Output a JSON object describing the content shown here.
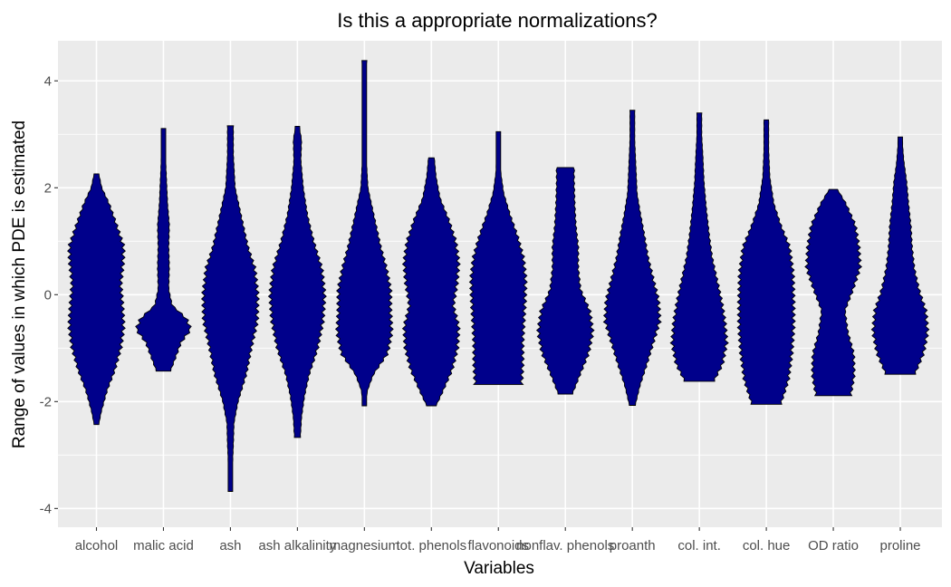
{
  "chart_data": {
    "type": "violin",
    "title": "Is this a appropriate normalizations?",
    "xlabel": "Variables",
    "ylabel": "Range of values in which PDE is estimated",
    "ylim": [
      -4.35,
      4.75
    ],
    "y_ticks": [
      -4,
      -2,
      0,
      2,
      4
    ],
    "grid": true,
    "legend": "none",
    "colors": {
      "fill": "#00008b",
      "outline": "#000000",
      "panel": "#ebebeb",
      "grid": "#ffffff"
    },
    "categories": [
      "alcohol",
      "malic acid",
      "ash",
      "ash alkalinity",
      "magnesium",
      "tot. phenols",
      "flavonoids",
      "nonflav. phenols",
      "proanth",
      "col. int.",
      "col. hue",
      "OD ratio",
      "proline"
    ],
    "series": [
      {
        "category": "alcohol",
        "y_min": -2.43,
        "y_max": 2.26,
        "density": [
          [
            -2.43,
            0.04
          ],
          [
            -2.2,
            0.08
          ],
          [
            -1.8,
            0.18
          ],
          [
            -1.4,
            0.32
          ],
          [
            -1.0,
            0.42
          ],
          [
            -0.6,
            0.47
          ],
          [
            -0.2,
            0.45
          ],
          [
            0.2,
            0.42
          ],
          [
            0.6,
            0.46
          ],
          [
            0.9,
            0.47
          ],
          [
            1.3,
            0.35
          ],
          [
            1.7,
            0.22
          ],
          [
            2.0,
            0.09
          ],
          [
            2.26,
            0.04
          ]
        ]
      },
      {
        "category": "malic acid",
        "y_min": -1.43,
        "y_max": 3.11,
        "density": [
          [
            -1.43,
            0.12
          ],
          [
            -1.2,
            0.2
          ],
          [
            -0.9,
            0.3
          ],
          [
            -0.65,
            0.47
          ],
          [
            -0.45,
            0.4
          ],
          [
            -0.2,
            0.15
          ],
          [
            0.1,
            0.09
          ],
          [
            0.5,
            0.1
          ],
          [
            0.9,
            0.09
          ],
          [
            1.3,
            0.1
          ],
          [
            1.7,
            0.07
          ],
          [
            2.2,
            0.05
          ],
          [
            2.7,
            0.03
          ],
          [
            3.11,
            0.03
          ]
        ]
      },
      {
        "category": "ash",
        "y_min": -3.68,
        "y_max": 3.16,
        "density": [
          [
            -3.68,
            0.02
          ],
          [
            -3.3,
            0.03
          ],
          [
            -2.8,
            0.05
          ],
          [
            -2.4,
            0.06
          ],
          [
            -2.0,
            0.13
          ],
          [
            -1.5,
            0.27
          ],
          [
            -1.0,
            0.36
          ],
          [
            -0.5,
            0.46
          ],
          [
            0.0,
            0.47
          ],
          [
            0.5,
            0.42
          ],
          [
            0.9,
            0.3
          ],
          [
            1.4,
            0.2
          ],
          [
            2.0,
            0.08
          ],
          [
            2.6,
            0.05
          ],
          [
            3.16,
            0.05
          ]
        ]
      },
      {
        "category": "ash alkalinity",
        "y_min": -2.67,
        "y_max": 3.15,
        "density": [
          [
            -2.67,
            0.05
          ],
          [
            -2.3,
            0.07
          ],
          [
            -1.9,
            0.12
          ],
          [
            -1.5,
            0.2
          ],
          [
            -1.0,
            0.35
          ],
          [
            -0.5,
            0.44
          ],
          [
            0.0,
            0.47
          ],
          [
            0.5,
            0.42
          ],
          [
            1.0,
            0.28
          ],
          [
            1.5,
            0.17
          ],
          [
            2.0,
            0.1
          ],
          [
            2.5,
            0.06
          ],
          [
            2.9,
            0.07
          ],
          [
            3.15,
            0.03
          ]
        ]
      },
      {
        "category": "magnesium",
        "y_min": -2.08,
        "y_max": 4.38,
        "density": [
          [
            -2.08,
            0.02
          ],
          [
            -1.8,
            0.05
          ],
          [
            -1.5,
            0.15
          ],
          [
            -1.1,
            0.4
          ],
          [
            -0.7,
            0.47
          ],
          [
            -0.3,
            0.45
          ],
          [
            0.1,
            0.45
          ],
          [
            0.5,
            0.38
          ],
          [
            0.9,
            0.28
          ],
          [
            1.4,
            0.18
          ],
          [
            2.0,
            0.06
          ],
          [
            2.6,
            0.03
          ],
          [
            3.2,
            0.02
          ],
          [
            3.8,
            0.02
          ],
          [
            4.38,
            0.04
          ]
        ]
      },
      {
        "category": "tot. phenols",
        "y_min": -2.08,
        "y_max": 2.56,
        "density": [
          [
            -2.08,
            0.08
          ],
          [
            -1.8,
            0.2
          ],
          [
            -1.4,
            0.36
          ],
          [
            -1.0,
            0.45
          ],
          [
            -0.6,
            0.47
          ],
          [
            -0.2,
            0.38
          ],
          [
            0.2,
            0.44
          ],
          [
            0.6,
            0.47
          ],
          [
            1.0,
            0.42
          ],
          [
            1.4,
            0.3
          ],
          [
            1.8,
            0.15
          ],
          [
            2.2,
            0.08
          ],
          [
            2.56,
            0.05
          ]
        ]
      },
      {
        "category": "flavonoids",
        "y_min": -1.68,
        "y_max": 3.05,
        "density": [
          [
            -1.68,
            0.4
          ],
          [
            -1.3,
            0.42
          ],
          [
            -0.9,
            0.42
          ],
          [
            -0.5,
            0.44
          ],
          [
            -0.1,
            0.46
          ],
          [
            0.3,
            0.47
          ],
          [
            0.7,
            0.43
          ],
          [
            1.1,
            0.33
          ],
          [
            1.5,
            0.2
          ],
          [
            1.9,
            0.09
          ],
          [
            2.3,
            0.04
          ],
          [
            2.7,
            0.03
          ],
          [
            3.05,
            0.03
          ]
        ]
      },
      {
        "category": "nonflav. phenols",
        "y_min": -1.86,
        "y_max": 2.38,
        "density": [
          [
            -1.86,
            0.12
          ],
          [
            -1.5,
            0.25
          ],
          [
            -1.1,
            0.4
          ],
          [
            -0.7,
            0.47
          ],
          [
            -0.3,
            0.42
          ],
          [
            0.1,
            0.26
          ],
          [
            0.5,
            0.22
          ],
          [
            0.9,
            0.22
          ],
          [
            1.3,
            0.18
          ],
          [
            1.7,
            0.16
          ],
          [
            2.1,
            0.15
          ],
          [
            2.38,
            0.15
          ]
        ]
      },
      {
        "category": "proanth",
        "y_min": -2.07,
        "y_max": 3.45,
        "density": [
          [
            -2.07,
            0.05
          ],
          [
            -1.7,
            0.13
          ],
          [
            -1.3,
            0.25
          ],
          [
            -0.9,
            0.36
          ],
          [
            -0.5,
            0.47
          ],
          [
            -0.1,
            0.45
          ],
          [
            0.3,
            0.36
          ],
          [
            0.7,
            0.27
          ],
          [
            1.1,
            0.21
          ],
          [
            1.5,
            0.14
          ],
          [
            1.9,
            0.08
          ],
          [
            2.4,
            0.06
          ],
          [
            2.9,
            0.04
          ],
          [
            3.45,
            0.04
          ]
        ]
      },
      {
        "category": "col. int.",
        "y_min": -1.62,
        "y_max": 3.4,
        "density": [
          [
            -1.62,
            0.25
          ],
          [
            -1.3,
            0.4
          ],
          [
            -0.9,
            0.47
          ],
          [
            -0.5,
            0.44
          ],
          [
            -0.1,
            0.38
          ],
          [
            0.3,
            0.3
          ],
          [
            0.7,
            0.22
          ],
          [
            1.1,
            0.17
          ],
          [
            1.6,
            0.12
          ],
          [
            2.1,
            0.08
          ],
          [
            2.6,
            0.06
          ],
          [
            3.0,
            0.04
          ],
          [
            3.4,
            0.04
          ]
        ]
      },
      {
        "category": "col. hue",
        "y_min": -2.05,
        "y_max": 3.27,
        "density": [
          [
            -2.05,
            0.25
          ],
          [
            -1.6,
            0.38
          ],
          [
            -1.1,
            0.44
          ],
          [
            -0.6,
            0.47
          ],
          [
            -0.1,
            0.47
          ],
          [
            0.4,
            0.46
          ],
          [
            0.9,
            0.4
          ],
          [
            1.3,
            0.25
          ],
          [
            1.7,
            0.13
          ],
          [
            2.2,
            0.06
          ],
          [
            2.7,
            0.04
          ],
          [
            3.27,
            0.04
          ]
        ]
      },
      {
        "category": "OD ratio",
        "y_min": -1.89,
        "y_max": 1.97,
        "density": [
          [
            -1.89,
            0.3
          ],
          [
            -1.5,
            0.36
          ],
          [
            -1.1,
            0.35
          ],
          [
            -0.7,
            0.25
          ],
          [
            -0.3,
            0.2
          ],
          [
            0.1,
            0.34
          ],
          [
            0.5,
            0.46
          ],
          [
            0.9,
            0.44
          ],
          [
            1.3,
            0.38
          ],
          [
            1.7,
            0.22
          ],
          [
            1.97,
            0.07
          ]
        ]
      },
      {
        "category": "proline",
        "y_min": -1.49,
        "y_max": 2.95,
        "density": [
          [
            -1.49,
            0.25
          ],
          [
            -1.1,
            0.4
          ],
          [
            -0.7,
            0.47
          ],
          [
            -0.3,
            0.44
          ],
          [
            0.1,
            0.32
          ],
          [
            0.5,
            0.24
          ],
          [
            0.9,
            0.2
          ],
          [
            1.3,
            0.18
          ],
          [
            1.7,
            0.14
          ],
          [
            2.1,
            0.11
          ],
          [
            2.5,
            0.06
          ],
          [
            2.95,
            0.03
          ]
        ]
      }
    ]
  }
}
